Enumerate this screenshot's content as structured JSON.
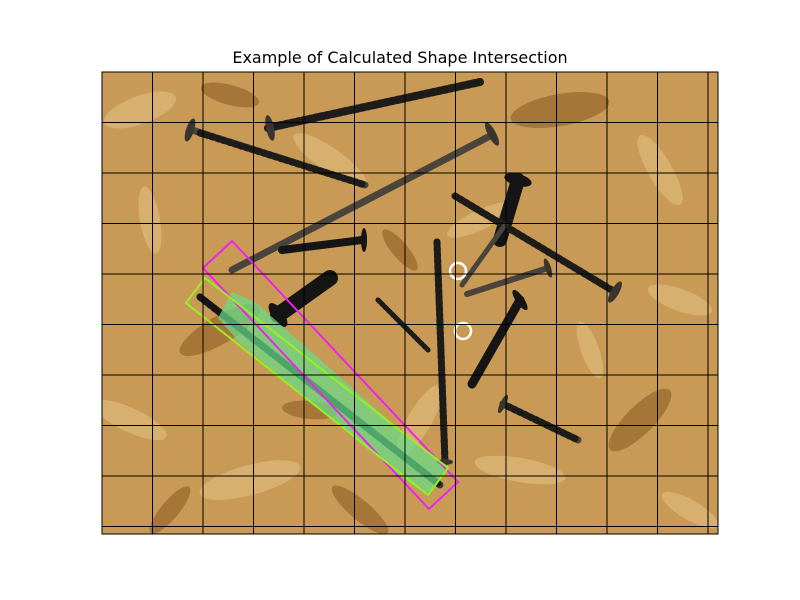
{
  "figure": {
    "title": "Example of Calculated Shape Intersection"
  },
  "colors": {
    "background": "#ffffff",
    "grid_lines": "#000000",
    "board_base": "#c89a55",
    "board_light": "#e3c486",
    "board_dark": "#8a5a24",
    "screw_metal": "#4a453c",
    "screw_dark": "#151515",
    "region_a_outline": "#ee22ee",
    "region_b_outline": "#99ee22",
    "intersection_fill": "#66dd88",
    "marker": "#ffffff"
  },
  "icons": [
    "circle-marker-icon"
  ]
}
